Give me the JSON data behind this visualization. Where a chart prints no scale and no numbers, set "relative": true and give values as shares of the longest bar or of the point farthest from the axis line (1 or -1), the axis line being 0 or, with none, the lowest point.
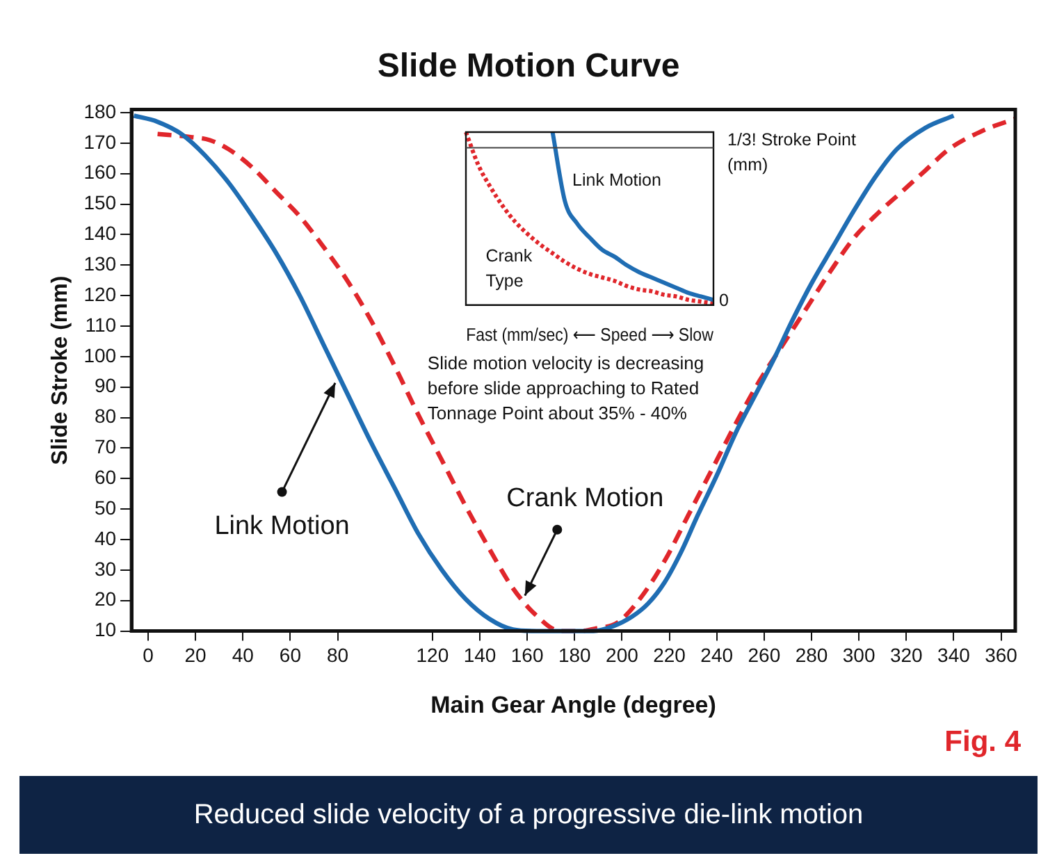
{
  "chart_data": [
    {
      "type": "line",
      "title": "Slide Motion Curve",
      "xlabel": "Main Gear Angle (degree)",
      "ylabel": "Slide Stroke (mm)",
      "xlim": [
        -7,
        366
      ],
      "xticks": [
        0,
        20,
        40,
        60,
        80,
        120,
        140,
        160,
        180,
        200,
        220,
        240,
        260,
        280,
        300,
        320,
        340,
        360
      ],
      "ylim": [
        10,
        181
      ],
      "yticks": [
        10,
        20,
        30,
        40,
        50,
        60,
        70,
        80,
        90,
        100,
        110,
        120,
        130,
        140,
        150,
        160,
        170,
        180
      ],
      "grid": false,
      "legend": false,
      "marker": "none",
      "series": [
        {
          "color": "#1f6db3",
          "line_style": "solid",
          "x": [
            -6,
            4,
            14,
            24,
            34,
            44,
            54,
            64,
            74,
            84,
            94,
            104,
            114,
            124,
            134,
            144,
            154,
            164,
            174,
            188,
            196,
            204,
            211,
            218,
            225,
            232,
            240,
            248,
            256,
            264,
            272,
            280,
            289,
            298,
            307,
            316,
            328,
            340
          ],
          "values": [
            179,
            177,
            173,
            166,
            157,
            146,
            134,
            120,
            104,
            88,
            72,
            57,
            42,
            30,
            20.5,
            14,
            10.5,
            10,
            10,
            10,
            11.5,
            14.6,
            19,
            26,
            36,
            48,
            61,
            75,
            87,
            99,
            112,
            124,
            136,
            148,
            159,
            168,
            175,
            179
          ]
        },
        {
          "color": "#e0262b",
          "line_style": "dashed",
          "x": [
            4,
            18,
            26,
            34,
            44,
            54,
            64,
            74,
            84,
            94,
            104,
            114,
            124,
            134,
            144,
            154,
            164,
            174,
            182,
            190,
            198,
            208,
            218,
            228,
            238,
            248,
            258,
            268,
            278,
            288,
            298,
            308,
            318,
            328,
            338,
            352,
            366
          ],
          "values": [
            173,
            172,
            171,
            168,
            162,
            154,
            146,
            136,
            125,
            112,
            97,
            81,
            66,
            51,
            37,
            24,
            15,
            10,
            10,
            11,
            12.7,
            21,
            33,
            48,
            63,
            78,
            92,
            104,
            116,
            128,
            139,
            147,
            154,
            161,
            168,
            174,
            178
          ]
        }
      ],
      "annotations": [
        {
          "text": "Link Motion",
          "x": 80,
          "y": 93
        },
        {
          "text": "Crank Motion",
          "x": 158,
          "y": 20
        },
        "Slide motion velocity is decreasing before slide approaching to Rated Tonnage Point about 35% - 40%",
        "Fig. 4",
        "Reduced slide velocity of a progressive die-link motion"
      ]
    },
    {
      "type": "line",
      "relative": true,
      "xlabel": "Fast (mm/sec) ⟵ Speed ⟶ Slow",
      "legend": false,
      "grid": false,
      "marker": "none",
      "categories": [
        null,
        null,
        null,
        null,
        null,
        null,
        null,
        null,
        null,
        null,
        null,
        null,
        null,
        null,
        null,
        null,
        null,
        null,
        null,
        null,
        null
      ],
      "series": [
        {
          "name": "Link Motion",
          "color": "#1f6db3",
          "line_style": "solid",
          "values": [
            null,
            null,
            null,
            null,
            null,
            null,
            null,
            1,
            0.6,
            0.47,
            0.39,
            0.32,
            0.28,
            0.23,
            0.19,
            0.16,
            0.13,
            0.1,
            0.07,
            0.05,
            0.03
          ]
        },
        {
          "name": "Crank Type",
          "color": "#e0262b",
          "line_style": "dotted",
          "values": [
            1,
            0.81,
            0.68,
            0.57,
            0.48,
            0.41,
            0.35,
            0.3,
            0.25,
            0.21,
            0.18,
            0.16,
            0.14,
            0.11,
            0.09,
            0.08,
            0.06,
            0.05,
            0.03,
            0.02,
            0.01
          ]
        }
      ],
      "ref_lines": [
        {
          "axis": "y",
          "value": 0.91,
          "label": "1/3! Stroke Point (mm)"
        }
      ],
      "annotations": [
        "0"
      ]
    }
  ]
}
